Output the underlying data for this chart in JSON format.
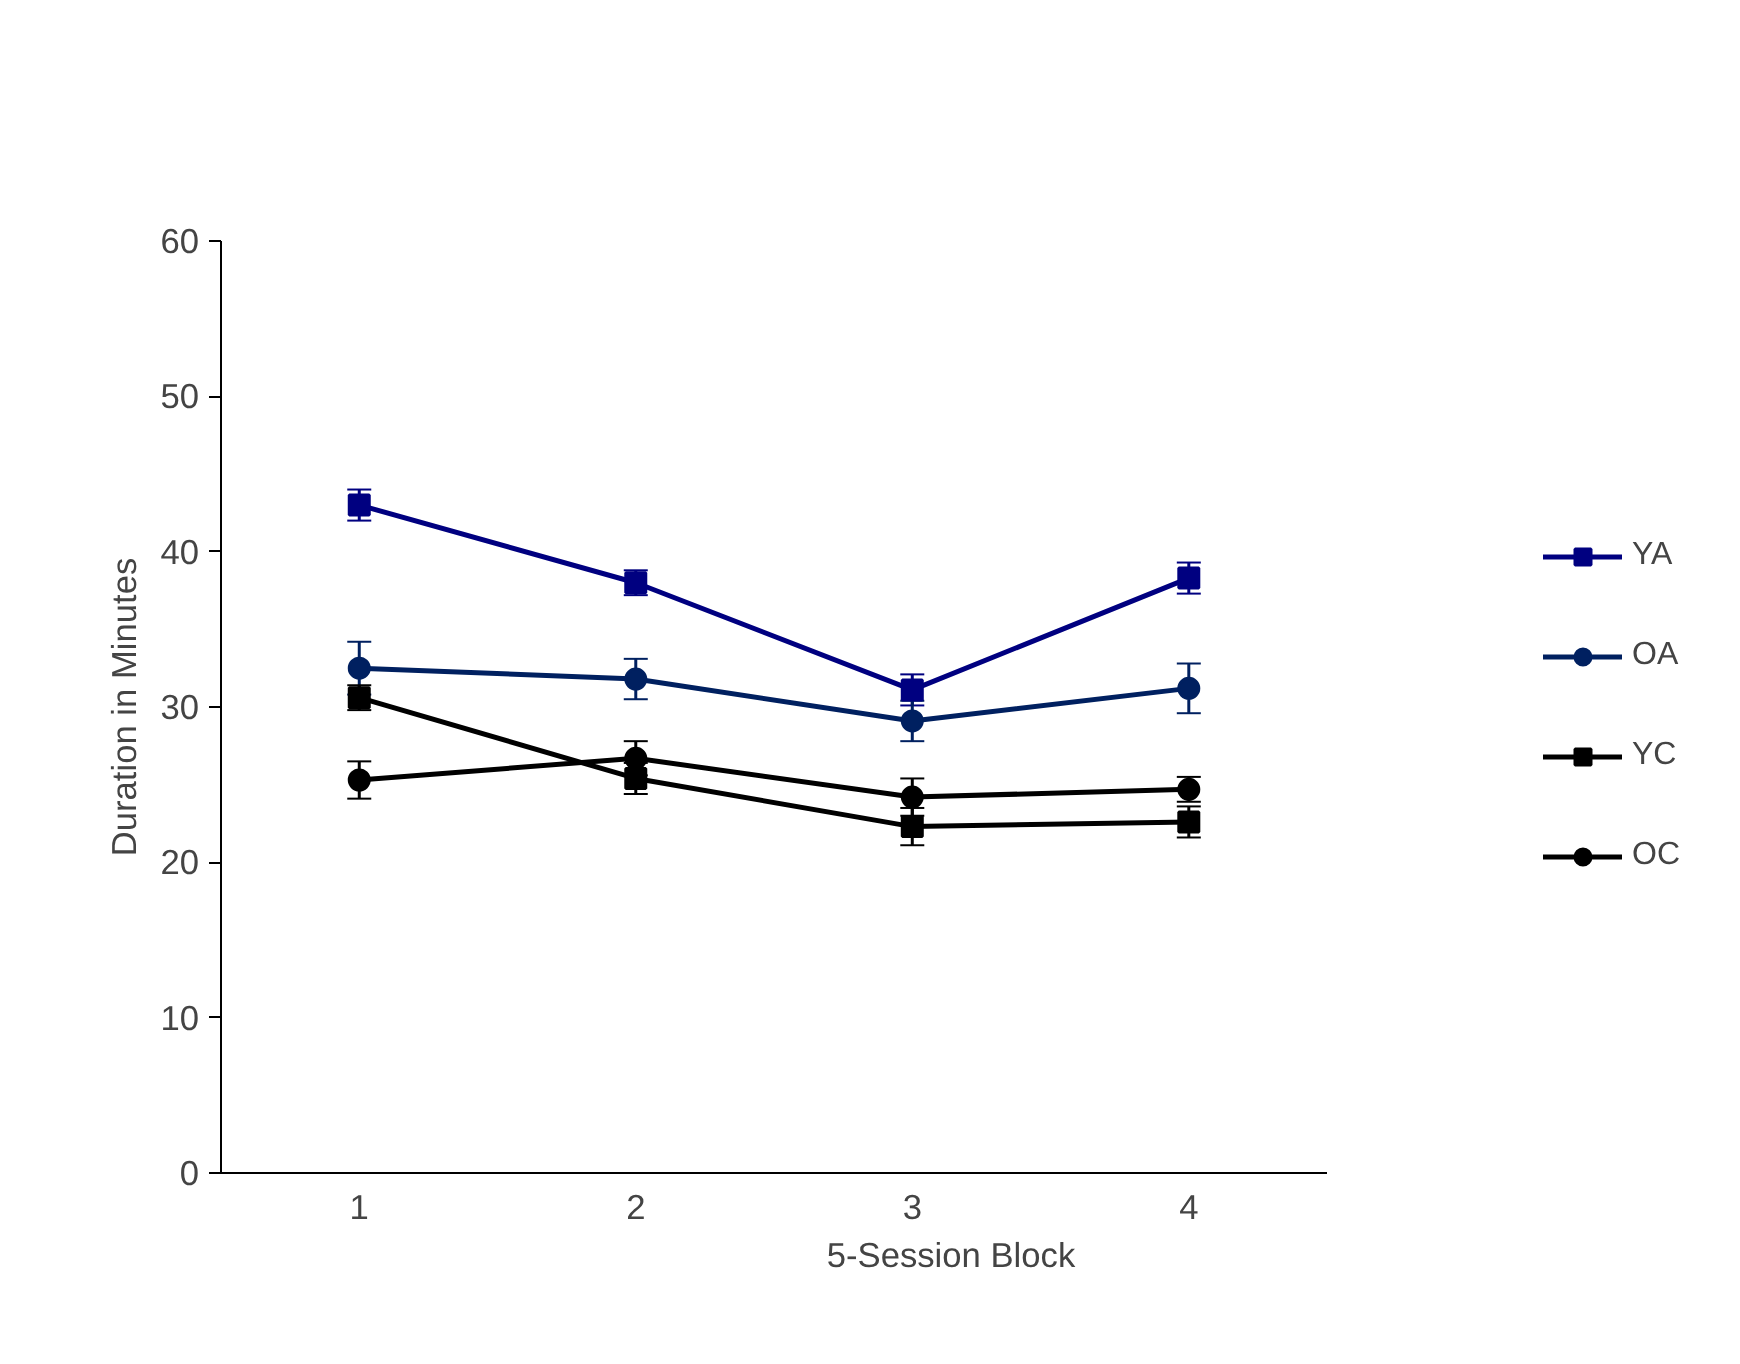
{
  "chart_data": {
    "type": "line",
    "xlabel": "5-Session Block",
    "ylabel": "Duration in Minutes",
    "categories": [
      "1",
      "2",
      "3",
      "4"
    ],
    "ylim": [
      0,
      60
    ],
    "yticks": [
      0,
      10,
      20,
      30,
      40,
      50,
      60
    ],
    "grid": false,
    "legend": "right",
    "line_style": "solid",
    "series": [
      {
        "name": "YA",
        "color": "#000080",
        "marker": "square",
        "values": [
          43,
          38,
          31.1,
          38.3
        ],
        "errors": [
          1,
          0.8,
          1,
          1
        ]
      },
      {
        "name": "OA",
        "color": "#002060",
        "marker": "circle",
        "values": [
          32.5,
          31.8,
          29.1,
          31.2
        ],
        "errors": [
          1.7,
          1.3,
          1.3,
          1.6
        ]
      },
      {
        "name": "YC",
        "color": "#000000",
        "marker": "square",
        "values": [
          30.6,
          25.4,
          22.3,
          22.6
        ],
        "errors": [
          0.8,
          1,
          1.2,
          1
        ]
      },
      {
        "name": "OC",
        "color": "#000000",
        "marker": "circle",
        "values": [
          25.3,
          26.7,
          24.2,
          24.7
        ],
        "errors": [
          1.2,
          1.1,
          1.2,
          0.8
        ]
      }
    ]
  }
}
